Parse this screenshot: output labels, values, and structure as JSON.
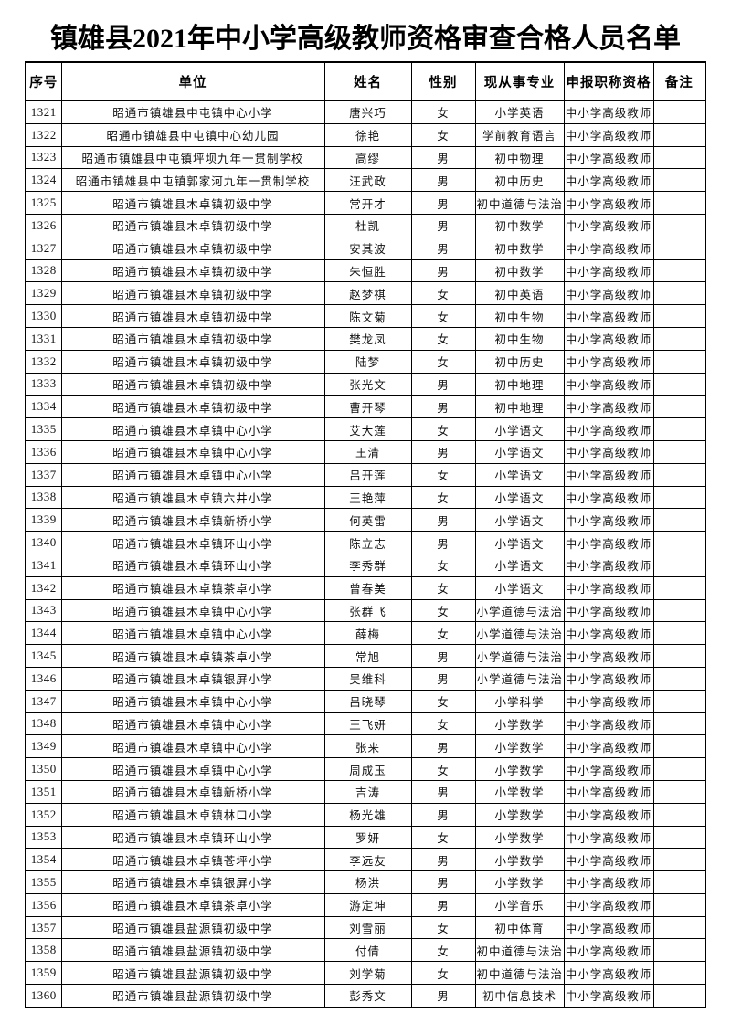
{
  "page": {
    "title": "镇雄县2021年中小学高级教师资格审查合格人员名单"
  },
  "table": {
    "columns": [
      "序号",
      "单位",
      "姓名",
      "性别",
      "现从事专业",
      "申报职称资格",
      "备注"
    ],
    "rows": [
      {
        "no": "1321",
        "unit": "昭通市镇雄县中屯镇中心小学",
        "name": "唐兴巧",
        "gender": "女",
        "major": "小学英语",
        "title": "中小学高级教师",
        "remark": ""
      },
      {
        "no": "1322",
        "unit": "昭通市镇雄县中屯镇中心幼儿园",
        "name": "徐艳",
        "gender": "女",
        "major": "学前教育语言",
        "title": "中小学高级教师",
        "remark": ""
      },
      {
        "no": "1323",
        "unit": "昭通市镇雄县中屯镇坪坝九年一贯制学校",
        "name": "高缪",
        "gender": "男",
        "major": "初中物理",
        "title": "中小学高级教师",
        "remark": ""
      },
      {
        "no": "1324",
        "unit": "昭通市镇雄县中屯镇郭家河九年一贯制学校",
        "name": "汪武政",
        "gender": "男",
        "major": "初中历史",
        "title": "中小学高级教师",
        "remark": ""
      },
      {
        "no": "1325",
        "unit": "昭通市镇雄县木卓镇初级中学",
        "name": "常开才",
        "gender": "男",
        "major": "初中道德与法治",
        "title": "中小学高级教师",
        "remark": ""
      },
      {
        "no": "1326",
        "unit": "昭通市镇雄县木卓镇初级中学",
        "name": "杜凯",
        "gender": "男",
        "major": "初中数学",
        "title": "中小学高级教师",
        "remark": ""
      },
      {
        "no": "1327",
        "unit": "昭通市镇雄县木卓镇初级中学",
        "name": "安其波",
        "gender": "男",
        "major": "初中数学",
        "title": "中小学高级教师",
        "remark": ""
      },
      {
        "no": "1328",
        "unit": "昭通市镇雄县木卓镇初级中学",
        "name": "朱恒胜",
        "gender": "男",
        "major": "初中数学",
        "title": "中小学高级教师",
        "remark": ""
      },
      {
        "no": "1329",
        "unit": "昭通市镇雄县木卓镇初级中学",
        "name": "赵梦祺",
        "gender": "女",
        "major": "初中英语",
        "title": "中小学高级教师",
        "remark": ""
      },
      {
        "no": "1330",
        "unit": "昭通市镇雄县木卓镇初级中学",
        "name": "陈文菊",
        "gender": "女",
        "major": "初中生物",
        "title": "中小学高级教师",
        "remark": ""
      },
      {
        "no": "1331",
        "unit": "昭通市镇雄县木卓镇初级中学",
        "name": "樊龙凤",
        "gender": "女",
        "major": "初中生物",
        "title": "中小学高级教师",
        "remark": ""
      },
      {
        "no": "1332",
        "unit": "昭通市镇雄县木卓镇初级中学",
        "name": "陆梦",
        "gender": "女",
        "major": "初中历史",
        "title": "中小学高级教师",
        "remark": ""
      },
      {
        "no": "1333",
        "unit": "昭通市镇雄县木卓镇初级中学",
        "name": "张光文",
        "gender": "男",
        "major": "初中地理",
        "title": "中小学高级教师",
        "remark": ""
      },
      {
        "no": "1334",
        "unit": "昭通市镇雄县木卓镇初级中学",
        "name": "曹开琴",
        "gender": "男",
        "major": "初中地理",
        "title": "中小学高级教师",
        "remark": ""
      },
      {
        "no": "1335",
        "unit": "昭通市镇雄县木卓镇中心小学",
        "name": "艾大莲",
        "gender": "女",
        "major": "小学语文",
        "title": "中小学高级教师",
        "remark": ""
      },
      {
        "no": "1336",
        "unit": "昭通市镇雄县木卓镇中心小学",
        "name": "王清",
        "gender": "男",
        "major": "小学语文",
        "title": "中小学高级教师",
        "remark": ""
      },
      {
        "no": "1337",
        "unit": "昭通市镇雄县木卓镇中心小学",
        "name": "吕开莲",
        "gender": "女",
        "major": "小学语文",
        "title": "中小学高级教师",
        "remark": ""
      },
      {
        "no": "1338",
        "unit": "昭通市镇雄县木卓镇六井小学",
        "name": "王艳萍",
        "gender": "女",
        "major": "小学语文",
        "title": "中小学高级教师",
        "remark": ""
      },
      {
        "no": "1339",
        "unit": "昭通市镇雄县木卓镇新桥小学",
        "name": "何英雷",
        "gender": "男",
        "major": "小学语文",
        "title": "中小学高级教师",
        "remark": ""
      },
      {
        "no": "1340",
        "unit": "昭通市镇雄县木卓镇环山小学",
        "name": "陈立志",
        "gender": "男",
        "major": "小学语文",
        "title": "中小学高级教师",
        "remark": ""
      },
      {
        "no": "1341",
        "unit": "昭通市镇雄县木卓镇环山小学",
        "name": "李秀群",
        "gender": "女",
        "major": "小学语文",
        "title": "中小学高级教师",
        "remark": ""
      },
      {
        "no": "1342",
        "unit": "昭通市镇雄县木卓镇茶卓小学",
        "name": "曾春美",
        "gender": "女",
        "major": "小学语文",
        "title": "中小学高级教师",
        "remark": ""
      },
      {
        "no": "1343",
        "unit": "昭通市镇雄县木卓镇中心小学",
        "name": "张群飞",
        "gender": "女",
        "major": "小学道德与法治",
        "title": "中小学高级教师",
        "remark": ""
      },
      {
        "no": "1344",
        "unit": "昭通市镇雄县木卓镇中心小学",
        "name": "薛梅",
        "gender": "女",
        "major": "小学道德与法治",
        "title": "中小学高级教师",
        "remark": ""
      },
      {
        "no": "1345",
        "unit": "昭通市镇雄县木卓镇茶卓小学",
        "name": "常旭",
        "gender": "男",
        "major": "小学道德与法治",
        "title": "中小学高级教师",
        "remark": ""
      },
      {
        "no": "1346",
        "unit": "昭通市镇雄县木卓镇银屏小学",
        "name": "吴维科",
        "gender": "男",
        "major": "小学道德与法治",
        "title": "中小学高级教师",
        "remark": ""
      },
      {
        "no": "1347",
        "unit": "昭通市镇雄县木卓镇中心小学",
        "name": "吕晓琴",
        "gender": "女",
        "major": "小学科学",
        "title": "中小学高级教师",
        "remark": ""
      },
      {
        "no": "1348",
        "unit": "昭通市镇雄县木卓镇中心小学",
        "name": "王飞妍",
        "gender": "女",
        "major": "小学数学",
        "title": "中小学高级教师",
        "remark": ""
      },
      {
        "no": "1349",
        "unit": "昭通市镇雄县木卓镇中心小学",
        "name": "张来",
        "gender": "男",
        "major": "小学数学",
        "title": "中小学高级教师",
        "remark": ""
      },
      {
        "no": "1350",
        "unit": "昭通市镇雄县木卓镇中心小学",
        "name": "周成玉",
        "gender": "女",
        "major": "小学数学",
        "title": "中小学高级教师",
        "remark": ""
      },
      {
        "no": "1351",
        "unit": "昭通市镇雄县木卓镇新桥小学",
        "name": "吉涛",
        "gender": "男",
        "major": "小学数学",
        "title": "中小学高级教师",
        "remark": ""
      },
      {
        "no": "1352",
        "unit": "昭通市镇雄县木卓镇林口小学",
        "name": "杨光雄",
        "gender": "男",
        "major": "小学数学",
        "title": "中小学高级教师",
        "remark": ""
      },
      {
        "no": "1353",
        "unit": "昭通市镇雄县木卓镇环山小学",
        "name": "罗妍",
        "gender": "女",
        "major": "小学数学",
        "title": "中小学高级教师",
        "remark": ""
      },
      {
        "no": "1354",
        "unit": "昭通市镇雄县木卓镇苍坪小学",
        "name": "李远友",
        "gender": "男",
        "major": "小学数学",
        "title": "中小学高级教师",
        "remark": ""
      },
      {
        "no": "1355",
        "unit": "昭通市镇雄县木卓镇银屏小学",
        "name": "杨洪",
        "gender": "男",
        "major": "小学数学",
        "title": "中小学高级教师",
        "remark": ""
      },
      {
        "no": "1356",
        "unit": "昭通市镇雄县木卓镇茶卓小学",
        "name": "游定坤",
        "gender": "男",
        "major": "小学音乐",
        "title": "中小学高级教师",
        "remark": ""
      },
      {
        "no": "1357",
        "unit": "昭通市镇雄县盐源镇初级中学",
        "name": "刘雪丽",
        "gender": "女",
        "major": "初中体育",
        "title": "中小学高级教师",
        "remark": ""
      },
      {
        "no": "1358",
        "unit": "昭通市镇雄县盐源镇初级中学",
        "name": "付倩",
        "gender": "女",
        "major": "初中道德与法治",
        "title": "中小学高级教师",
        "remark": ""
      },
      {
        "no": "1359",
        "unit": "昭通市镇雄县盐源镇初级中学",
        "name": "刘学菊",
        "gender": "女",
        "major": "初中道德与法治",
        "title": "中小学高级教师",
        "remark": ""
      },
      {
        "no": "1360",
        "unit": "昭通市镇雄县盐源镇初级中学",
        "name": "彭秀文",
        "gender": "男",
        "major": "初中信息技术",
        "title": "中小学高级教师",
        "remark": ""
      }
    ]
  }
}
